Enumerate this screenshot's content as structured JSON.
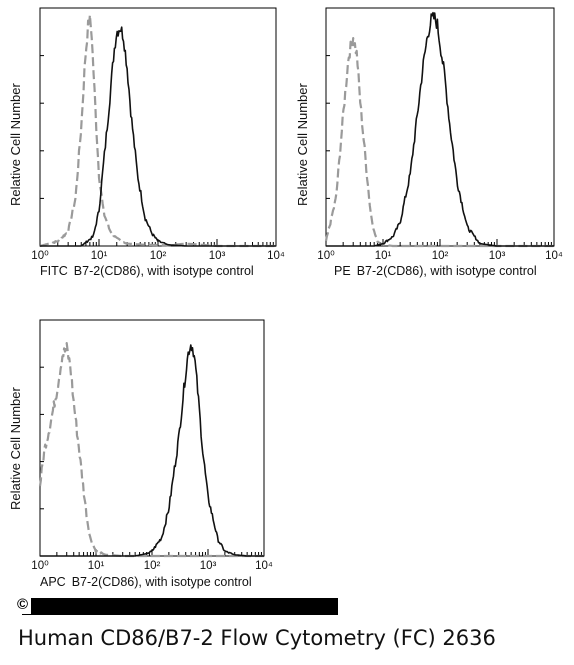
{
  "chart_data": [
    {
      "type": "line",
      "panel": "FITC",
      "ylabel": "Relative Cell Number",
      "xlabel_prefix": "FITC",
      "xlabel": "B7-2(CD86),  with isotype control",
      "xscale": "log",
      "xlim": [
        1,
        10000
      ],
      "ylim": [
        0,
        1
      ],
      "xticks": [
        "10⁰",
        "10¹",
        "10²",
        "10³",
        "10⁴"
      ],
      "series": [
        {
          "style": "dashed",
          "color": "#9a9a9a",
          "x": [
            1,
            2,
            3,
            4,
            5,
            5.8,
            6.5,
            7,
            7.5,
            8,
            9,
            10,
            12,
            15,
            20,
            30,
            60,
            150,
            300,
            1000
          ],
          "y": [
            0,
            0.02,
            0.06,
            0.2,
            0.5,
            0.78,
            0.92,
            0.95,
            0.9,
            0.75,
            0.5,
            0.3,
            0.14,
            0.07,
            0.03,
            0.01,
            0.005,
            0.003,
            0.01,
            0
          ]
        },
        {
          "style": "solid",
          "color": "#111111",
          "x": [
            1,
            5,
            8,
            10,
            12,
            15,
            18,
            20,
            23,
            26,
            30,
            35,
            45,
            60,
            80,
            100,
            150,
            300,
            1000
          ],
          "y": [
            0,
            0,
            0.04,
            0.15,
            0.35,
            0.6,
            0.82,
            0.9,
            0.92,
            0.88,
            0.75,
            0.55,
            0.3,
            0.12,
            0.05,
            0.02,
            0.005,
            0,
            0
          ]
        }
      ]
    },
    {
      "type": "line",
      "panel": "PE",
      "ylabel": "Relative Cell Number",
      "xlabel_prefix": "PE",
      "xlabel": "B7-2(CD86),  with isotype control",
      "xscale": "log",
      "xlim": [
        1,
        10000
      ],
      "ylim": [
        0,
        1
      ],
      "xticks": [
        "10⁰",
        "10¹",
        "10²",
        "10³",
        "10⁴"
      ],
      "series": [
        {
          "style": "dashed",
          "color": "#9a9a9a",
          "x": [
            1,
            1.5,
            2,
            2.5,
            3,
            3.5,
            4,
            5,
            6,
            7,
            8,
            10,
            15,
            30
          ],
          "y": [
            0.02,
            0.2,
            0.55,
            0.8,
            0.88,
            0.8,
            0.6,
            0.35,
            0.15,
            0.06,
            0.02,
            0.005,
            0,
            0
          ]
        },
        {
          "style": "solid",
          "color": "#111111",
          "x": [
            1,
            7,
            10,
            15,
            20,
            30,
            40,
            50,
            60,
            70,
            80,
            90,
            100,
            120,
            150,
            200,
            300,
            500,
            1000
          ],
          "y": [
            0,
            0,
            0.01,
            0.04,
            0.1,
            0.3,
            0.55,
            0.75,
            0.88,
            0.95,
            0.96,
            0.93,
            0.85,
            0.72,
            0.5,
            0.27,
            0.08,
            0.01,
            0
          ]
        }
      ]
    },
    {
      "type": "line",
      "panel": "APC",
      "ylabel": "Relative Cell Number",
      "xlabel_prefix": "APC",
      "xlabel": "B7-2(CD86), with isotype control",
      "xscale": "log",
      "xlim": [
        1,
        10000
      ],
      "ylim": [
        0,
        1
      ],
      "xticks": [
        "10⁰",
        "10¹",
        "10²",
        "10³",
        "10⁴"
      ],
      "series": [
        {
          "style": "dashed",
          "color": "#9a9a9a",
          "x": [
            1,
            1.2,
            1.5,
            2,
            2.5,
            3,
            3.5,
            4,
            5,
            6,
            7,
            8,
            10,
            15,
            30
          ],
          "y": [
            0.3,
            0.45,
            0.55,
            0.7,
            0.85,
            0.88,
            0.8,
            0.65,
            0.45,
            0.28,
            0.15,
            0.07,
            0.02,
            0.005,
            0
          ]
        },
        {
          "style": "solid",
          "color": "#111111",
          "x": [
            1,
            50,
            80,
            100,
            150,
            200,
            300,
            400,
            450,
            500,
            550,
            600,
            700,
            800,
            1000,
            1500,
            2000,
            3000,
            5000
          ],
          "y": [
            0,
            0,
            0.01,
            0.02,
            0.08,
            0.2,
            0.5,
            0.78,
            0.87,
            0.9,
            0.87,
            0.8,
            0.62,
            0.45,
            0.25,
            0.07,
            0.02,
            0.005,
            0
          ]
        }
      ]
    }
  ],
  "caption": "Human CD86/B7-2 Flow Cytometry (FC) 2636",
  "copyright_symbol": "©"
}
